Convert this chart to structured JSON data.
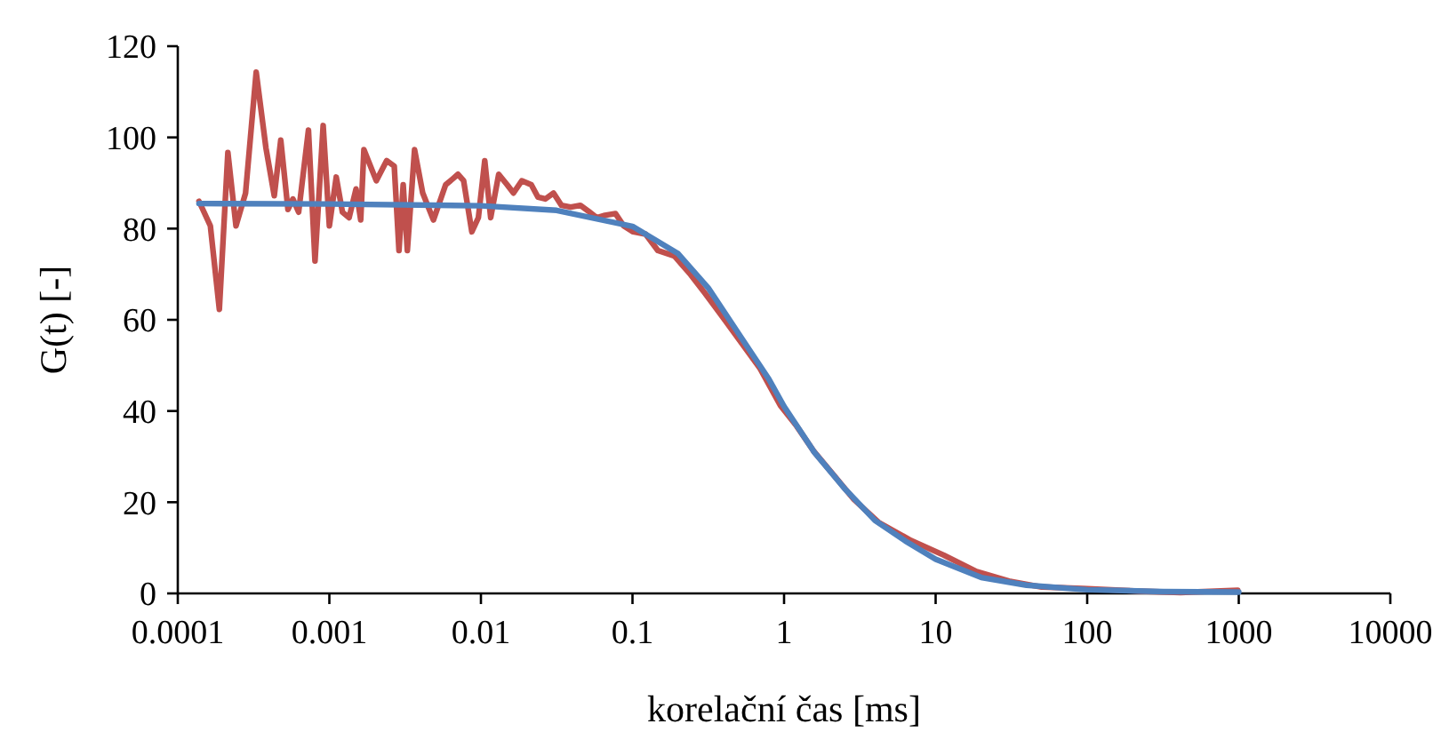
{
  "chart_data": {
    "type": "line",
    "xlabel": "korelační čas [ms]",
    "ylabel": "G(t) [-]",
    "log": "x",
    "grid": false,
    "marker": "none",
    "line_style": "solid",
    "xlim": [
      0.0001,
      10000
    ],
    "xticks": [
      0.0001,
      0.001,
      0.01,
      0.1,
      1,
      10,
      100,
      1000,
      10000
    ],
    "ylim": [
      0,
      120
    ],
    "yticks": [
      0,
      20,
      40,
      60,
      80,
      100,
      120
    ],
    "series": [
      {
        "color": "#c0504d",
        "x": [
          0.000138,
          0.000164,
          0.000188,
          0.000214,
          0.000242,
          0.00028,
          0.000329,
          0.000382,
          0.000433,
          0.000478,
          0.000533,
          0.000575,
          0.000627,
          0.000728,
          0.000804,
          0.00091,
          0.001,
          0.00111,
          0.00122,
          0.00135,
          0.0015,
          0.00161,
          0.00169,
          0.00204,
          0.00239,
          0.00268,
          0.00288,
          0.00307,
          0.00327,
          0.00365,
          0.00413,
          0.00486,
          0.00585,
          0.00646,
          0.00705,
          0.00769,
          0.00871,
          0.00962,
          0.0106,
          0.0116,
          0.0131,
          0.0149,
          0.0164,
          0.0186,
          0.0215,
          0.0238,
          0.0266,
          0.0301,
          0.034,
          0.0391,
          0.0453,
          0.0513,
          0.0581,
          0.0658,
          0.0773,
          0.0875,
          0.101,
          0.122,
          0.147,
          0.189,
          0.242,
          0.303,
          0.397,
          0.509,
          0.695,
          0.946,
          1.21,
          1.56,
          2.12,
          2.89,
          4.2,
          6.89,
          11.3,
          18.6,
          30.5,
          50.1,
          93.3,
          222,
          413,
          984
        ],
        "values": [
          86,
          80.6,
          62.3,
          96.7,
          80.6,
          87.8,
          114.3,
          97.6,
          87.2,
          99.4,
          84.2,
          86.5,
          83.6,
          101.6,
          72.9,
          102.6,
          80.6,
          91.3,
          83.6,
          82.4,
          88.7,
          81.9,
          97.3,
          90.5,
          94.9,
          93.7,
          75.2,
          89.6,
          75.2,
          97.3,
          87.8,
          81.9,
          89.6,
          90.8,
          91.9,
          90.5,
          79.3,
          82.4,
          94.9,
          82.4,
          91.9,
          89.6,
          87.8,
          90.5,
          89.6,
          86.9,
          86.5,
          87.8,
          85.1,
          84.7,
          85.1,
          83.8,
          82.4,
          82.9,
          83.3,
          80.6,
          79.3,
          78.8,
          75.2,
          74,
          69.9,
          65.7,
          60.4,
          55.5,
          49.3,
          41.2,
          36.7,
          31.3,
          26,
          20.6,
          15.6,
          11.6,
          8.4,
          4.8,
          2.7,
          1.4,
          1.1,
          0.5,
          0.2,
          0.7
        ]
      },
      {
        "color": "#4f81bd",
        "x": [
          0.000138,
          0.001,
          0.01,
          0.0316,
          0.1,
          0.2,
          0.316,
          0.501,
          0.794,
          1,
          1.58,
          2.51,
          3.98,
          6.31,
          10,
          20,
          39.8,
          100,
          316,
          1000
        ],
        "values": [
          85.5,
          85.4,
          85,
          84,
          80.5,
          74.5,
          67,
          57,
          47,
          41,
          31,
          23,
          16,
          11.5,
          7.5,
          3.5,
          1.8,
          0.8,
          0.4,
          0.3
        ]
      }
    ]
  }
}
